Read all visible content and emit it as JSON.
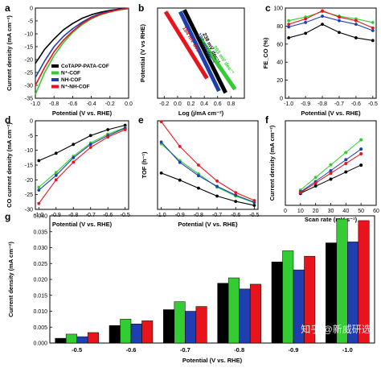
{
  "colors": {
    "black": "#000000",
    "green": "#33cc33",
    "blue": "#1f3fb0",
    "red": "#e8141c"
  },
  "watermark": "知乎 @新威研选",
  "chart_data": [
    {
      "id": "a",
      "letter": "a",
      "type": "line",
      "xlabel": "Potential (V vs. RHE)",
      "ylabel": "Current density (mA cm⁻²)",
      "xlim": [
        -1.0,
        0.0
      ],
      "ylim": [
        -35,
        0
      ],
      "xticks": [
        "-1.0",
        "-0.8",
        "-0.6",
        "-0.4",
        "-0.2",
        "0.0"
      ],
      "yticks": [
        "0",
        "-5",
        "-10",
        "-15",
        "-20",
        "-25",
        "-30",
        "-35"
      ],
      "legend_position": "bottom-right",
      "x": [
        -1.0,
        -0.9,
        -0.8,
        -0.7,
        -0.6,
        -0.5,
        -0.4,
        -0.3,
        -0.2,
        -0.1,
        0.0
      ],
      "series": [
        {
          "name": "CoTAPP-PATA-COF",
          "color": "black",
          "values": [
            -21.5,
            -16,
            -12,
            -8.5,
            -6,
            -4,
            -2.6,
            -1.6,
            -0.9,
            -0.4,
            -0.1
          ]
        },
        {
          "name": "N⁺-COF",
          "color": "green",
          "values": [
            -33.5,
            -25,
            -18.5,
            -13.5,
            -9.5,
            -6.5,
            -4.2,
            -2.6,
            -1.5,
            -0.7,
            -0.2
          ]
        },
        {
          "name": "NH-COF",
          "color": "blue",
          "values": [
            -27,
            -20.5,
            -15,
            -11,
            -8,
            -5.5,
            -3.5,
            -2.1,
            -1.2,
            -0.5,
            -0.15
          ]
        },
        {
          "name": "N⁺-NH-COF",
          "color": "red",
          "values": [
            -30,
            -23,
            -17,
            -12.5,
            -9,
            -6,
            -3.9,
            -2.4,
            -1.4,
            -0.6,
            -0.2
          ]
        }
      ]
    },
    {
      "id": "b",
      "letter": "b",
      "type": "line",
      "xlabel": "Log (j/mA cm⁻²)",
      "ylabel": "Potential (V vs RHE)",
      "xlim": [
        -0.3,
        1.0
      ],
      "ylim": [
        0,
        1
      ],
      "xticks": [
        "-0.2",
        "0.0",
        "0.2",
        "0.4",
        "0.6",
        "0.8"
      ],
      "series": [
        {
          "name": "203 mV dec⁻¹",
          "color": "green",
          "x": [
            0.34,
            0.86
          ],
          "y": [
            0.66,
            0.1
          ]
        },
        {
          "name": "238 mV dec⁻¹",
          "color": "black",
          "x": [
            0.1,
            0.72
          ],
          "y": [
            0.98,
            0.06
          ]
        },
        {
          "name": "197 mV dec⁻¹",
          "color": "blue",
          "x": [
            0.04,
            0.62
          ],
          "y": [
            0.96,
            0.08
          ]
        },
        {
          "name": "184 mV dec⁻¹",
          "color": "red",
          "x": [
            -0.18,
            0.44
          ],
          "y": [
            0.96,
            0.22
          ]
        }
      ]
    },
    {
      "id": "c",
      "letter": "c",
      "type": "line",
      "xlabel": "Potential (V vs. RHE)",
      "ylabel": "FE_CO (%)",
      "xlim": [
        -1.02,
        -0.48
      ],
      "ylim": [
        0,
        100
      ],
      "xticks": [
        "-1.0",
        "-0.9",
        "-0.8",
        "-0.7",
        "-0.6",
        "-0.5"
      ],
      "yticks": [
        "0",
        "20",
        "40",
        "60",
        "80",
        "100"
      ],
      "x": [
        -1.0,
        -0.9,
        -0.8,
        -0.7,
        -0.6,
        -0.5
      ],
      "series": [
        {
          "name": "CoTAPP-PATA-COF",
          "color": "black",
          "values": [
            67,
            72,
            82,
            73,
            67,
            64
          ]
        },
        {
          "name": "N⁺-COF",
          "color": "green",
          "values": [
            86,
            90,
            96,
            91,
            88,
            84
          ]
        },
        {
          "name": "NH-COF",
          "color": "blue",
          "values": [
            79,
            84,
            91,
            86,
            82,
            75
          ]
        },
        {
          "name": "N⁺-NH-COF",
          "color": "red",
          "values": [
            82,
            88,
            97,
            90,
            86,
            78
          ]
        }
      ]
    },
    {
      "id": "d",
      "letter": "d",
      "type": "line",
      "xlabel": "Potential (V vs. RHE)",
      "ylabel": "CO current density (mA cm⁻²)",
      "xlim": [
        -1.02,
        -0.48
      ],
      "ylim": [
        -30,
        0
      ],
      "xticks": [
        "-1.0",
        "-0.9",
        "-0.8",
        "-0.7",
        "-0.6",
        "-0.5"
      ],
      "yticks": [
        "0",
        "-5",
        "-10",
        "-15",
        "-20",
        "-25",
        "-30"
      ],
      "x": [
        -1.0,
        -0.9,
        -0.8,
        -0.7,
        -0.6,
        -0.5
      ],
      "series": [
        {
          "name": "CoTAPP-PATA-COF",
          "color": "black",
          "values": [
            -13.5,
            -11,
            -8,
            -5,
            -3,
            -1.5
          ]
        },
        {
          "name": "N⁺-COF",
          "color": "green",
          "values": [
            -22.5,
            -17.5,
            -12,
            -7.5,
            -4.5,
            -2.3
          ]
        },
        {
          "name": "NH-COF",
          "color": "blue",
          "values": [
            -23.5,
            -18.5,
            -12.5,
            -8,
            -5,
            -2.5
          ]
        },
        {
          "name": "N⁺-NH-COF",
          "color": "red",
          "values": [
            -28,
            -20,
            -14,
            -9,
            -5.5,
            -3
          ]
        }
      ]
    },
    {
      "id": "e",
      "letter": "e",
      "type": "line",
      "xlabel": "Potential (V vs. RHE)",
      "ylabel": "TOF (h⁻¹)",
      "xlim": [
        -1.02,
        -0.48
      ],
      "ylim": [
        0,
        10000
      ],
      "xticks": [
        "-1.0",
        "-0.9",
        "-0.8",
        "-0.7",
        "-0.6",
        "-0.5"
      ],
      "x": [
        -1.0,
        -0.9,
        -0.8,
        -0.7,
        -0.6,
        -0.5
      ],
      "series": [
        {
          "name": "CoTAPP-PATA-COF",
          "color": "black",
          "values": [
            4100,
            3300,
            2400,
            1500,
            900,
            450
          ]
        },
        {
          "name": "N⁺-COF",
          "color": "green",
          "values": [
            7400,
            5500,
            4000,
            2500,
            1500,
            750
          ]
        },
        {
          "name": "NH-COF",
          "color": "blue",
          "values": [
            7600,
            5300,
            3800,
            2600,
            1600,
            800
          ]
        },
        {
          "name": "N⁺-NH-COF",
          "color": "red",
          "values": [
            9900,
            7100,
            5000,
            3200,
            1900,
            1000
          ]
        }
      ]
    },
    {
      "id": "f",
      "letter": "f",
      "type": "scatter",
      "xlabel": "Scan rate (mV s⁻¹)",
      "ylabel": "Current density (mA cm⁻²)",
      "xlim": [
        0,
        60
      ],
      "ylim": [
        0,
        2.0
      ],
      "xticks": [
        "0",
        "10",
        "20",
        "30",
        "40",
        "50",
        "60"
      ],
      "x": [
        10,
        20,
        30,
        40,
        50
      ],
      "series": [
        {
          "name": "CoTAPP-PATA-COF",
          "color": "black",
          "values": [
            0.28,
            0.46,
            0.62,
            0.79,
            0.95
          ]
        },
        {
          "name": "N⁺-COF",
          "color": "green",
          "values": [
            0.36,
            0.66,
            0.96,
            1.25,
            1.55
          ]
        },
        {
          "name": "NH-COF",
          "color": "blue",
          "values": [
            0.32,
            0.56,
            0.82,
            1.08,
            1.33
          ]
        },
        {
          "name": "N⁺-NH-COF",
          "color": "red",
          "values": [
            0.3,
            0.53,
            0.76,
            0.99,
            1.22
          ]
        }
      ]
    },
    {
      "id": "g",
      "letter": "g",
      "type": "bar",
      "xlabel": "Potential (V vs. RHE)",
      "ylabel": "Current density (mA cm⁻²)",
      "categories": [
        "-0.5",
        "-0.6",
        "-0.7",
        "-0.8",
        "-0.9",
        "-1.0"
      ],
      "ylim": [
        0,
        0.04
      ],
      "yticks": [
        "0.000",
        "0.005",
        "0.010",
        "0.015",
        "0.020",
        "0.025",
        "0.030",
        "0.035",
        "0.040"
      ],
      "series": [
        {
          "name": "CoTAPP-PATA-COF",
          "color": "black",
          "values": [
            0.0015,
            0.0055,
            0.0105,
            0.0188,
            0.0255,
            0.0315
          ]
        },
        {
          "name": "N⁺-COF",
          "color": "green",
          "values": [
            0.0028,
            0.0075,
            0.013,
            0.0205,
            0.029,
            0.039
          ]
        },
        {
          "name": "NH-COF",
          "color": "blue",
          "values": [
            0.002,
            0.006,
            0.01,
            0.017,
            0.023,
            0.0318
          ]
        },
        {
          "name": "N⁺-NH-COF",
          "color": "red",
          "values": [
            0.0033,
            0.007,
            0.0115,
            0.0185,
            0.0273,
            0.0385
          ]
        }
      ]
    }
  ]
}
